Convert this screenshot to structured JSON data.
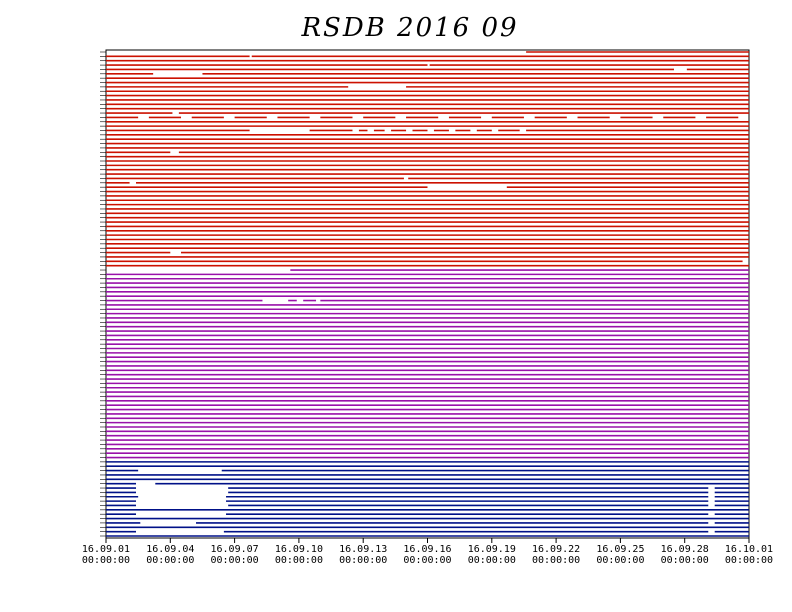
{
  "chart_data": {
    "type": "timeline",
    "title": "RSDB  2016  09",
    "xlim": [
      0,
      30
    ],
    "xticks": [
      {
        "value": 0,
        "label": "16.09.01 00:00:00"
      },
      {
        "value": 3,
        "label": "16.09.04 00:00:00"
      },
      {
        "value": 6,
        "label": "16.09.07 00:00:00"
      },
      {
        "value": 9,
        "label": "16.09.10 00:00:00"
      },
      {
        "value": 12,
        "label": "16.09.13 00:00:00"
      },
      {
        "value": 15,
        "label": "16.09.16 00:00:00"
      },
      {
        "value": 18,
        "label": "16.09.19 00:00:00"
      },
      {
        "value": 21,
        "label": "16.09.22 00:00:00"
      },
      {
        "value": 24,
        "label": "16.09.25 00:00:00"
      },
      {
        "value": 27,
        "label": "16.09.28 00:00:00"
      },
      {
        "value": 30,
        "label": "16.10.01 00:00:00"
      }
    ],
    "series": [
      {
        "color": "#cc1100",
        "rows": [
          [
            [
              19.6,
              30
            ]
          ],
          [
            [
              0,
              6.7
            ],
            [
              6.8,
              30
            ]
          ],
          [
            [
              0,
              30
            ]
          ],
          [
            [
              0,
              15
            ],
            [
              15.1,
              30
            ]
          ],
          [
            [
              0,
              26.5
            ],
            [
              27.1,
              30
            ]
          ],
          [
            [
              0,
              2.2
            ],
            [
              4.5,
              30
            ]
          ],
          [
            [
              0,
              30
            ]
          ],
          [
            [
              0,
              30
            ]
          ],
          [
            [
              0,
              11.3
            ],
            [
              14,
              30
            ]
          ],
          [
            [
              0,
              30
            ]
          ],
          [
            [
              0,
              30
            ]
          ],
          [
            [
              0,
              30
            ]
          ],
          [
            [
              0,
              30
            ]
          ],
          [
            [
              0,
              30
            ]
          ],
          [
            [
              0,
              3.1
            ],
            [
              3.4,
              30
            ]
          ],
          [
            [
              0,
              1.5
            ],
            [
              2,
              3.5
            ],
            [
              4,
              5.5
            ],
            [
              6,
              7.5
            ],
            [
              8,
              9.5
            ],
            [
              10,
              11.5
            ],
            [
              12,
              13.5
            ],
            [
              14,
              15.5
            ],
            [
              16,
              17.5
            ],
            [
              18,
              19.5
            ],
            [
              20,
              21.5
            ],
            [
              22,
              23.5
            ],
            [
              24,
              25.5
            ],
            [
              26,
              27.5
            ],
            [
              28,
              29.5
            ]
          ],
          [
            [
              0,
              30
            ]
          ],
          [
            [
              0,
              30
            ]
          ],
          [
            [
              0,
              6.7
            ],
            [
              9.5,
              11.5
            ],
            [
              11.8,
              12.2
            ],
            [
              12.5,
              13
            ],
            [
              13.3,
              14
            ],
            [
              14.3,
              15
            ],
            [
              15.3,
              16
            ],
            [
              16.3,
              17
            ],
            [
              17.3,
              18
            ],
            [
              18.3,
              19.3
            ],
            [
              19.6,
              30
            ]
          ],
          [
            [
              0,
              30
            ]
          ],
          [
            [
              0,
              30
            ]
          ],
          [
            [
              0,
              30
            ]
          ],
          [
            [
              0,
              30
            ]
          ],
          [
            [
              0,
              3
            ],
            [
              3.4,
              30
            ]
          ],
          [
            [
              0,
              30
            ]
          ],
          [
            [
              0,
              30
            ]
          ],
          [
            [
              0,
              30
            ]
          ],
          [
            [
              0,
              30
            ]
          ],
          [
            [
              0,
              30
            ]
          ],
          [
            [
              0,
              13.9
            ],
            [
              14.1,
              30
            ]
          ],
          [
            [
              0,
              1.1
            ],
            [
              1.4,
              30
            ]
          ],
          [
            [
              0,
              15
            ],
            [
              18.7,
              30
            ]
          ],
          [
            [
              0,
              30
            ]
          ],
          [
            [
              0,
              30
            ]
          ],
          [
            [
              0,
              30
            ]
          ],
          [
            [
              0,
              30
            ]
          ],
          [
            [
              0,
              30
            ]
          ],
          [
            [
              0,
              30
            ]
          ],
          [
            [
              0,
              30
            ]
          ],
          [
            [
              0,
              30
            ]
          ],
          [
            [
              0,
              30
            ]
          ],
          [
            [
              0,
              30
            ]
          ],
          [
            [
              0,
              30
            ]
          ],
          [
            [
              0,
              30
            ]
          ],
          [
            [
              0,
              30
            ]
          ],
          [
            [
              0,
              30
            ]
          ],
          [
            [
              0,
              3
            ],
            [
              3.5,
              30
            ]
          ],
          [
            [
              0,
              30
            ]
          ],
          [
            [
              0,
              29.7
            ]
          ],
          [
            [
              0,
              30
            ]
          ]
        ]
      },
      {
        "color": "#9911aa",
        "rows": [
          [
            [
              8.6,
              30
            ]
          ],
          [
            [
              0,
              30
            ]
          ],
          [
            [
              0,
              30
            ]
          ],
          [
            [
              0,
              30
            ]
          ],
          [
            [
              0,
              30
            ]
          ],
          [
            [
              0,
              30
            ]
          ],
          [
            [
              0,
              30
            ]
          ],
          [
            [
              0,
              7.3
            ],
            [
              8.5,
              8.9
            ],
            [
              9.2,
              9.8
            ],
            [
              10,
              30
            ]
          ],
          [
            [
              0,
              30
            ]
          ],
          [
            [
              0,
              30
            ]
          ],
          [
            [
              0,
              30
            ]
          ],
          [
            [
              0,
              30
            ]
          ],
          [
            [
              0,
              30
            ]
          ],
          [
            [
              0,
              30
            ]
          ],
          [
            [
              0,
              30
            ]
          ],
          [
            [
              0,
              30
            ]
          ],
          [
            [
              0,
              30
            ]
          ],
          [
            [
              0,
              30
            ]
          ],
          [
            [
              0,
              30
            ]
          ],
          [
            [
              0,
              30
            ]
          ],
          [
            [
              0,
              30
            ]
          ],
          [
            [
              0,
              30
            ]
          ],
          [
            [
              0,
              30
            ]
          ],
          [
            [
              0,
              30
            ]
          ],
          [
            [
              0,
              30
            ]
          ],
          [
            [
              0,
              30
            ]
          ],
          [
            [
              0,
              30
            ]
          ],
          [
            [
              0,
              30
            ]
          ],
          [
            [
              0,
              30
            ]
          ],
          [
            [
              0,
              30
            ]
          ],
          [
            [
              0,
              30
            ]
          ],
          [
            [
              0,
              30
            ]
          ],
          [
            [
              0,
              30
            ]
          ],
          [
            [
              0,
              30
            ]
          ],
          [
            [
              0,
              30
            ]
          ],
          [
            [
              0,
              30
            ]
          ],
          [
            [
              0,
              30
            ]
          ],
          [
            [
              0,
              30
            ]
          ],
          [
            [
              0,
              30
            ]
          ],
          [
            [
              0,
              30
            ]
          ],
          [
            [
              0,
              30
            ]
          ],
          [
            [
              0,
              30
            ]
          ],
          [
            [
              0,
              30
            ]
          ],
          [
            [
              0,
              30
            ]
          ]
        ]
      },
      {
        "color": "#001188",
        "rows": [
          [
            [
              0,
              30
            ]
          ],
          [
            [
              0,
              30
            ]
          ],
          [
            [
              0,
              1.5
            ],
            [
              5.4,
              30
            ]
          ],
          [
            [
              0,
              30
            ]
          ],
          [
            [
              0,
              30
            ]
          ],
          [
            [
              0,
              1.4
            ],
            [
              2.3,
              30
            ]
          ],
          [
            [
              0,
              1.4
            ],
            [
              5.7,
              28.1
            ],
            [
              28.4,
              30
            ]
          ],
          [
            [
              0,
              1.4
            ],
            [
              5.7,
              28.1
            ],
            [
              28.4,
              30
            ]
          ],
          [
            [
              0,
              1.5
            ],
            [
              5.6,
              28.1
            ],
            [
              28.4,
              30
            ]
          ],
          [
            [
              0,
              1.4
            ],
            [
              5.6,
              28.1
            ],
            [
              28.4,
              30
            ]
          ],
          [
            [
              0,
              1.4
            ],
            [
              5.7,
              28.1
            ],
            [
              28.4,
              30
            ]
          ],
          [
            [
              0,
              30
            ]
          ],
          [
            [
              0,
              1.4
            ],
            [
              5.6,
              28.1
            ],
            [
              28.4,
              30
            ]
          ],
          [
            [
              0,
              30
            ]
          ],
          [
            [
              0,
              1.6
            ],
            [
              4.2,
              28.1
            ],
            [
              28.4,
              30
            ]
          ],
          [
            [
              0,
              30
            ]
          ],
          [
            [
              0,
              1.4
            ],
            [
              5.5,
              28.1
            ],
            [
              28.4,
              30
            ]
          ],
          [
            [
              0,
              30
            ]
          ]
        ]
      }
    ]
  }
}
